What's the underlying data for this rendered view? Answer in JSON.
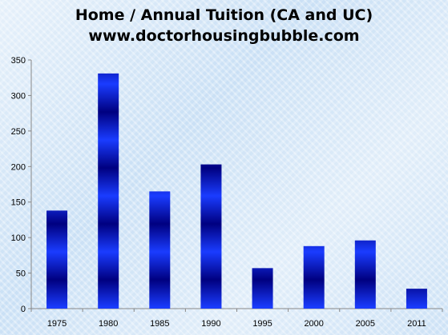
{
  "chart_data": {
    "type": "bar",
    "title": "Home / Annual Tuition (CA and UC)",
    "subtitle": "www.doctorhousingbubble.com",
    "categories": [
      "1975",
      "1980",
      "1985",
      "1990",
      "1995",
      "2000",
      "2005",
      "2011"
    ],
    "values": [
      138,
      331,
      165,
      203,
      57,
      88,
      96,
      28
    ],
    "ylim": [
      0,
      350
    ],
    "yticks": [
      0,
      50,
      100,
      150,
      200,
      250,
      300,
      350
    ],
    "grid": false,
    "legend": "none",
    "colors": {
      "bar_dark": "#000080",
      "bar_light": "#1a3cff",
      "axis": "#888888"
    }
  }
}
